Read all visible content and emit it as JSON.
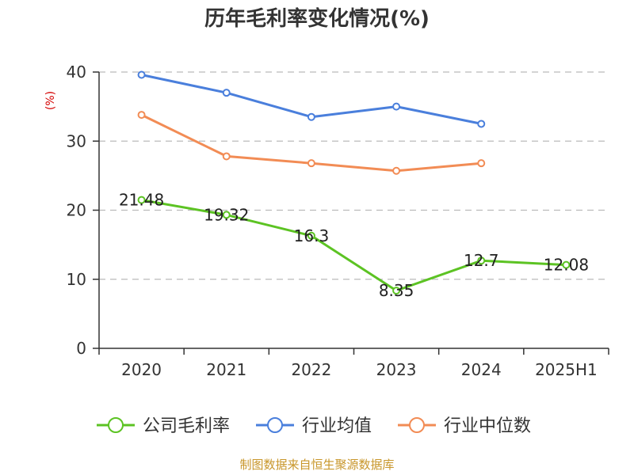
{
  "chart_data": {
    "type": "line",
    "title": "历年毛利率变化情况(%)",
    "ylabel": "(%)",
    "xlabel": "",
    "categories": [
      "2020",
      "2021",
      "2022",
      "2023",
      "2024",
      "2025H1"
    ],
    "ylim": [
      0,
      40
    ],
    "yticks": [
      0,
      10,
      20,
      30,
      40
    ],
    "grid": true,
    "legend_position": "bottom",
    "series": [
      {
        "name": "公司毛利率",
        "color": "#5cc323",
        "values": [
          21.48,
          19.32,
          16.3,
          8.35,
          12.7,
          12.08
        ],
        "labels": [
          "21.48",
          "19.32",
          "16.3",
          "8.35",
          "12.7",
          "12.08"
        ]
      },
      {
        "name": "行业均值",
        "color": "#4a7fdc",
        "values": [
          39.6,
          37.0,
          33.5,
          35.0,
          32.5,
          null
        ]
      },
      {
        "name": "行业中位数",
        "color": "#f28c55",
        "values": [
          33.8,
          27.8,
          26.8,
          25.7,
          26.8,
          null
        ]
      }
    ]
  },
  "source": "制图数据来自恒生聚源数据库"
}
